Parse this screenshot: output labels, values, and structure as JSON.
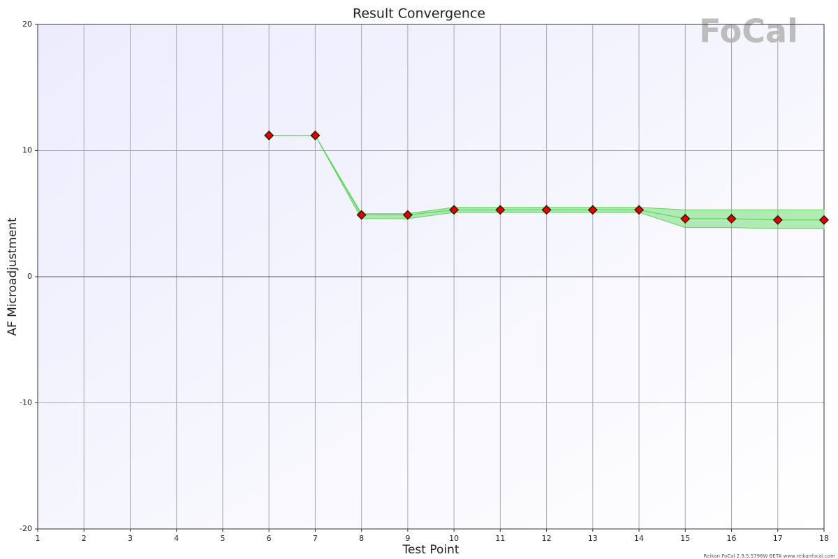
{
  "chart_data": {
    "type": "line",
    "title": "Result Convergence",
    "x_label": "Test Point",
    "y_label": "AF Microadjustment",
    "logo_text": "FoCal",
    "footer": "Reikan FoCal 2.9.5.5796W BETA www.reikanfocal.com",
    "x": [
      1,
      2,
      3,
      4,
      5,
      6,
      7,
      8,
      9,
      10,
      11,
      12,
      13,
      14,
      15,
      16,
      17,
      18
    ],
    "values": [
      null,
      null,
      null,
      null,
      null,
      11.2,
      11.2,
      4.9,
      4.9,
      5.3,
      5.3,
      5.3,
      5.3,
      5.3,
      4.6,
      4.6,
      4.5,
      4.5
    ],
    "band_upper": [
      null,
      null,
      null,
      null,
      null,
      11.2,
      11.2,
      5.0,
      5.0,
      5.5,
      5.5,
      5.5,
      5.5,
      5.5,
      5.3,
      5.3,
      5.3,
      5.3
    ],
    "band_lower": [
      null,
      null,
      null,
      null,
      null,
      11.2,
      11.2,
      4.6,
      4.6,
      5.1,
      5.1,
      5.1,
      5.1,
      5.1,
      3.9,
      3.9,
      3.8,
      3.8
    ],
    "color": "#e00000",
    "band_color": "#5cd65c",
    "xlim": [
      1,
      18
    ],
    "ylim": [
      -20,
      20
    ],
    "xticks": [
      1,
      2,
      3,
      4,
      5,
      6,
      7,
      8,
      9,
      10,
      11,
      12,
      13,
      14,
      15,
      16,
      17,
      18
    ],
    "yticks": [
      -20,
      -10,
      0,
      10,
      20
    ],
    "grid": true
  }
}
